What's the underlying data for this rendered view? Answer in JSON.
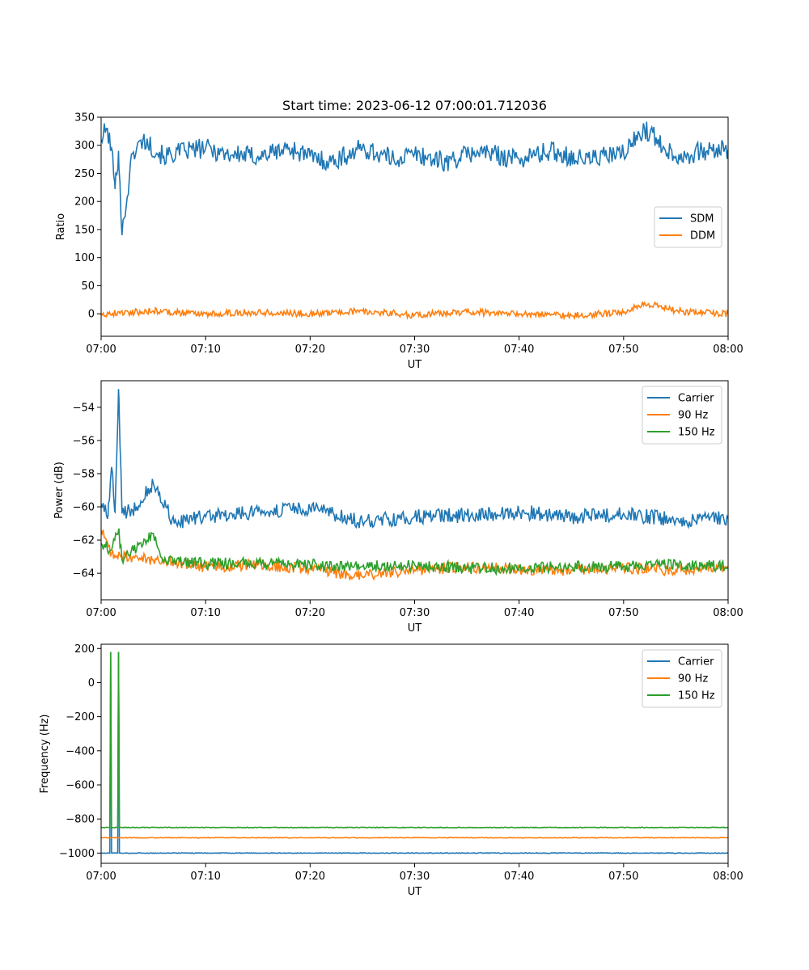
{
  "chart_data": [
    {
      "type": "line",
      "title": "Start time: 2023-06-12 07:00:01.712036",
      "xlabel": "UT",
      "ylabel": "Ratio",
      "xlim": [
        "07:00",
        "08:00"
      ],
      "x_ticks": [
        "07:00",
        "07:10",
        "07:20",
        "07:30",
        "07:40",
        "07:50",
        "08:00"
      ],
      "ylim": [
        -40,
        350
      ],
      "y_ticks": [
        0,
        50,
        100,
        150,
        200,
        250,
        300,
        350
      ],
      "legend": "center-right",
      "grid": false,
      "series": [
        {
          "name": "SDM",
          "color": "#1f77b4",
          "x": [
            "07:00",
            "07:00:30",
            "07:01",
            "07:01:20",
            "07:01:40",
            "07:02",
            "07:03",
            "07:04",
            "07:06",
            "07:08",
            "07:10",
            "07:12",
            "07:15",
            "07:18",
            "07:20",
            "07:22",
            "07:25",
            "07:28",
            "07:30",
            "07:33",
            "07:36",
            "07:40",
            "07:43",
            "07:46",
            "07:50",
            "07:52",
            "07:55",
            "07:58",
            "08:00"
          ],
          "values": [
            310,
            330,
            295,
            222,
            290,
            140,
            285,
            310,
            280,
            290,
            295,
            285,
            280,
            295,
            280,
            270,
            295,
            275,
            285,
            270,
            290,
            275,
            290,
            275,
            285,
            330,
            280,
            290,
            292
          ]
        },
        {
          "name": "DDM",
          "color": "#ff7f0e",
          "x": [
            "07:00",
            "07:05",
            "07:10",
            "07:15",
            "07:20",
            "07:25",
            "07:30",
            "07:35",
            "07:40",
            "07:45",
            "07:50",
            "07:52",
            "07:55",
            "08:00"
          ],
          "values": [
            0,
            5,
            0,
            3,
            0,
            5,
            -2,
            3,
            0,
            -3,
            2,
            20,
            5,
            0
          ]
        }
      ]
    },
    {
      "type": "line",
      "xlabel": "UT",
      "ylabel": "Power (dB)",
      "xlim": [
        "07:00",
        "08:00"
      ],
      "x_ticks": [
        "07:00",
        "07:10",
        "07:20",
        "07:30",
        "07:40",
        "07:50",
        "08:00"
      ],
      "ylim": [
        -65.6,
        -52.4
      ],
      "y_ticks": [
        -64,
        -62,
        -60,
        -58,
        -56,
        -54
      ],
      "legend": "top-right",
      "grid": false,
      "series": [
        {
          "name": "Carrier",
          "color": "#1f77b4",
          "x": [
            "07:00",
            "07:00:40",
            "07:01",
            "07:01:20",
            "07:01:40",
            "07:02",
            "07:03",
            "07:05",
            "07:07",
            "07:10",
            "07:15",
            "07:20",
            "07:25",
            "07:30",
            "07:35",
            "07:40",
            "07:45",
            "07:50",
            "07:55",
            "08:00"
          ],
          "values": [
            -59.8,
            -60.5,
            -57.6,
            -60.3,
            -52.9,
            -60.4,
            -60.2,
            -58.6,
            -61.0,
            -60.6,
            -60.3,
            -60.1,
            -60.9,
            -60.6,
            -60.5,
            -60.3,
            -60.6,
            -60.4,
            -60.8,
            -60.7
          ]
        },
        {
          "name": "90 Hz",
          "color": "#ff7f0e",
          "x": [
            "07:00",
            "07:01",
            "07:02",
            "07:05",
            "07:10",
            "07:15",
            "07:20",
            "07:25",
            "07:30",
            "07:35",
            "07:40",
            "07:45",
            "07:50",
            "07:55",
            "08:00"
          ],
          "values": [
            -61.4,
            -62.8,
            -63.0,
            -63.2,
            -63.6,
            -63.5,
            -63.7,
            -64.2,
            -63.8,
            -63.6,
            -63.8,
            -63.8,
            -63.7,
            -63.8,
            -63.6
          ]
        },
        {
          "name": "150 Hz",
          "color": "#2ca02c",
          "x": [
            "07:00",
            "07:01",
            "07:01:40",
            "07:02",
            "07:05",
            "07:06",
            "07:10",
            "07:15",
            "07:20",
            "07:25",
            "07:30",
            "07:35",
            "07:40",
            "07:45",
            "07:50",
            "07:55",
            "08:00"
          ],
          "values": [
            -62.2,
            -62.6,
            -61.4,
            -63.2,
            -61.6,
            -63.3,
            -63.4,
            -63.4,
            -63.5,
            -63.6,
            -63.5,
            -63.7,
            -63.7,
            -63.6,
            -63.6,
            -63.5,
            -63.6
          ]
        }
      ]
    },
    {
      "type": "line",
      "xlabel": "UT",
      "ylabel": "Frequency (Hz)",
      "xlim": [
        "07:00",
        "08:00"
      ],
      "x_ticks": [
        "07:00",
        "07:10",
        "07:20",
        "07:30",
        "07:40",
        "07:50",
        "08:00"
      ],
      "ylim": [
        -1060,
        225
      ],
      "y_ticks": [
        -1000,
        -800,
        -600,
        -400,
        -200,
        0,
        200
      ],
      "legend": "top-right",
      "grid": false,
      "series": [
        {
          "name": "Carrier",
          "color": "#1f77b4",
          "x": [
            "07:00",
            "07:00:50",
            "07:00:55",
            "07:01:00",
            "07:01:35",
            "07:01:40",
            "07:01:45",
            "08:00"
          ],
          "values": [
            -1000,
            -1000,
            180,
            -1000,
            -1000,
            180,
            -1000,
            -1000
          ]
        },
        {
          "name": "90 Hz",
          "color": "#ff7f0e",
          "x": [
            "07:00",
            "08:00"
          ],
          "values": [
            -910,
            -910
          ]
        },
        {
          "name": "150 Hz",
          "color": "#2ca02c",
          "x": [
            "07:00",
            "07:00:50",
            "07:00:55",
            "07:01:00",
            "07:01:35",
            "07:01:40",
            "07:01:45",
            "08:00"
          ],
          "values": [
            -850,
            -850,
            180,
            -850,
            -850,
            180,
            -850,
            -850
          ]
        }
      ]
    }
  ]
}
